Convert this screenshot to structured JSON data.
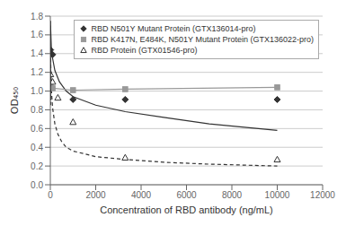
{
  "chart_data": {
    "type": "line",
    "title": "",
    "xlabel": "Concentration of RBD antibody (ng/mL)",
    "ylabel": "OD₄₅₀",
    "xlim": [
      0,
      12000
    ],
    "ylim": [
      0,
      1.8
    ],
    "xticks": [
      0,
      2000,
      4000,
      6000,
      8000,
      10000,
      12000
    ],
    "yticks": [
      {
        "value": 0,
        "label": "0.0"
      },
      0.2,
      0.4,
      0.6,
      0.8,
      {
        "value": 1.0,
        "label": "1.0"
      },
      1.2,
      1.4,
      1.6,
      1.8
    ],
    "grid": "y",
    "legend": "upper right",
    "series": [
      {
        "type": "line",
        "x": [
          10,
          50,
          100,
          200,
          400,
          700,
          1000,
          2000,
          3300,
          5000,
          7000,
          10000
        ],
        "values": [
          1.7,
          1.42,
          1.35,
          1.22,
          1.1,
          1.0,
          0.94,
          0.85,
          0.78,
          0.72,
          0.65,
          0.58
        ],
        "color": "#333333",
        "line_style": "solid"
      },
      {
        "type": "line",
        "x": [
          10,
          50,
          100,
          200,
          333,
          500,
          700,
          1000,
          2000,
          3300,
          5000,
          7000,
          10000
        ],
        "values": [
          1.35,
          1.0,
          0.82,
          0.65,
          0.54,
          0.46,
          0.4,
          0.36,
          0.3,
          0.27,
          0.24,
          0.22,
          0.2
        ],
        "color": "#333333",
        "line_style": "dashed"
      },
      {
        "name": "RBD N501Y Mutant Protein (GTX136014-pro)",
        "type": "scatter",
        "x": [
          10,
          100,
          1000,
          3300,
          10000
        ],
        "values": [
          1.44,
          1.39,
          0.91,
          0.91,
          0.91
        ],
        "color": "#333333",
        "marker": "diamond"
      },
      {
        "name": "RBD K417N, E484K, N501Y Mutant Protein (GTX136022-pro)",
        "type": "line",
        "x": [
          10,
          100,
          1000,
          3300,
          10000
        ],
        "values": [
          1.05,
          1.03,
          1.01,
          1.02,
          1.04
        ],
        "color": "#999999",
        "marker": "square",
        "line_style": "solid"
      },
      {
        "name": "RBD Protein (GTX01546-pro)",
        "type": "scatter",
        "x": [
          10,
          100,
          333,
          1000,
          3300,
          10000
        ],
        "values": [
          1.18,
          1.1,
          0.93,
          0.67,
          0.29,
          0.27
        ],
        "color": "#333333",
        "marker": "open_triangle"
      },
      {
        "type": "line",
        "x": [
          10,
          10
        ],
        "values": [
          0.9,
          1.75
        ],
        "color": "#333333",
        "line_style": "solid"
      },
      {
        "type": "line",
        "x": [
          10,
          10
        ],
        "values": [
          0.85,
          1.25
        ],
        "color": "#333333",
        "line_style": "dashed"
      }
    ]
  }
}
